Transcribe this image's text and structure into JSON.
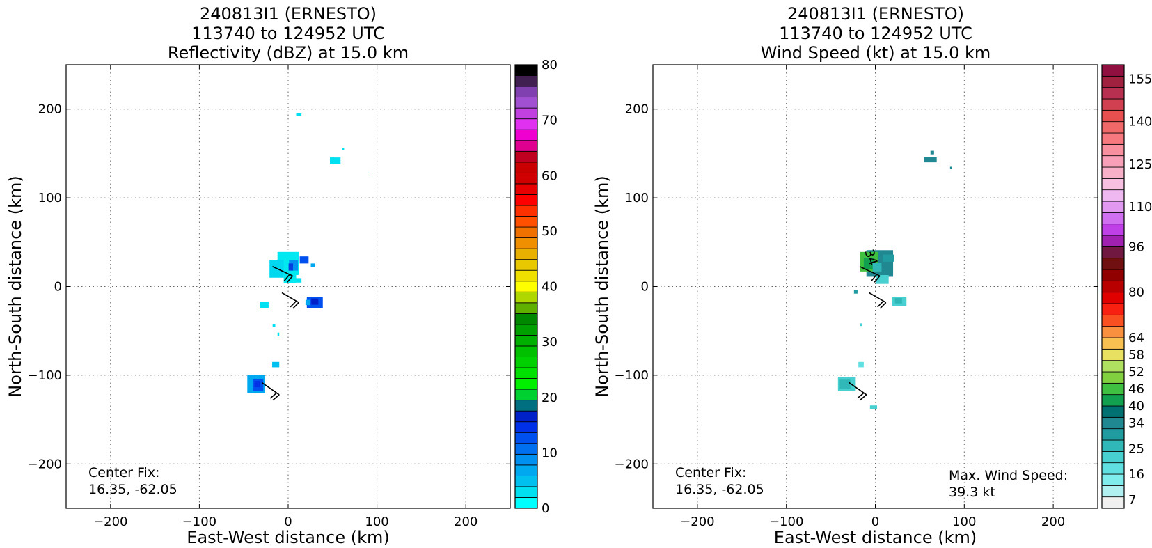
{
  "chart_data": [
    {
      "type": "heatmap",
      "title_lines": [
        "240813I1 (ERNESTO)",
        "113740 to 124952 UTC",
        "Reflectivity (dBZ) at 15.0 km"
      ],
      "xlabel": "East-West distance (km)",
      "ylabel": "North-South distance (km)",
      "xlim": [
        -250,
        250
      ],
      "ylim": [
        -250,
        250
      ],
      "xticks": [
        -200,
        -100,
        0,
        100,
        200
      ],
      "yticks": [
        -200,
        -100,
        0,
        100,
        200
      ],
      "x_tick_labels": [
        "−200",
        "−100",
        "0",
        "100",
        "200"
      ],
      "y_tick_labels": [
        "−200",
        "−100",
        "0",
        "100",
        "200"
      ],
      "grid": true,
      "colorbar": {
        "min": 0,
        "max": 80,
        "tick_values": [
          0,
          10,
          20,
          30,
          40,
          50,
          60,
          70,
          80
        ],
        "tick_labels": [
          "0",
          "10",
          "20",
          "30",
          "40",
          "50",
          "60",
          "70",
          "80"
        ],
        "colors": [
          "#00ffff",
          "#00e0f0",
          "#00c0f0",
          "#00a8f0",
          "#0090f0",
          "#0070f0",
          "#0050f0",
          "#0030e8",
          "#0020c8",
          "#007080",
          "#00d030",
          "#00f000",
          "#00e000",
          "#00d000",
          "#00c000",
          "#00b000",
          "#00a000",
          "#008800",
          "#60b000",
          "#b0d800",
          "#ffff00",
          "#f0e000",
          "#e8c800",
          "#e8b000",
          "#f09000",
          "#f07000",
          "#ff5000",
          "#ff3000",
          "#ff0000",
          "#e80000",
          "#d00000",
          "#c80000",
          "#c00020",
          "#e00090",
          "#f000d0",
          "#e030f0",
          "#c040e0",
          "#a050d0",
          "#8040b0",
          "#402050",
          "#000000"
        ]
      },
      "annotations": [
        {
          "lines": [
            "Center Fix:",
            "16.35, -62.05"
          ]
        }
      ],
      "cells": [
        {
          "x": 12,
          "y": 194,
          "w": 6,
          "h": 3,
          "color": "#00e0f0"
        },
        {
          "x": 53,
          "y": 142,
          "w": 12,
          "h": 7,
          "color": "#00e0f0"
        },
        {
          "x": 50,
          "y": 144,
          "w": 4,
          "h": 3,
          "color": "#00e0f0"
        },
        {
          "x": 62,
          "y": 155,
          "w": 2,
          "h": 3,
          "color": "#00e0f0"
        },
        {
          "x": 90,
          "y": 128,
          "w": 1,
          "h": 1,
          "color": "#00e0f0"
        },
        {
          "x": 0,
          "y": 26,
          "w": 24,
          "h": 26,
          "color": "#00e8f0"
        },
        {
          "x": -13,
          "y": 20,
          "w": 16,
          "h": 20,
          "color": "#00d8f0"
        },
        {
          "x": 2,
          "y": 10,
          "w": 14,
          "h": 12,
          "color": "#00e8f0"
        },
        {
          "x": 6,
          "y": 24,
          "w": 10,
          "h": 12,
          "color": "#0090f0"
        },
        {
          "x": 3,
          "y": 22,
          "w": 5,
          "h": 8,
          "color": "#0040e0"
        },
        {
          "x": 18,
          "y": 30,
          "w": 10,
          "h": 8,
          "color": "#0050f0"
        },
        {
          "x": 28,
          "y": 24,
          "w": 5,
          "h": 4,
          "color": "#00a8f0"
        },
        {
          "x": 12,
          "y": 7,
          "w": 6,
          "h": 5,
          "color": "#00e0f0"
        },
        {
          "x": 30,
          "y": -18,
          "w": 18,
          "h": 12,
          "color": "#0050f0"
        },
        {
          "x": 30,
          "y": -17,
          "w": 8,
          "h": 7,
          "color": "#0020c8"
        },
        {
          "x": 22,
          "y": -18,
          "w": 5,
          "h": 6,
          "color": "#00a8f0"
        },
        {
          "x": -27,
          "y": -21,
          "w": 10,
          "h": 7,
          "color": "#00e0f0"
        },
        {
          "x": -16,
          "y": -44,
          "w": 3,
          "h": 3,
          "color": "#00e0f0"
        },
        {
          "x": -11,
          "y": -54,
          "w": 2,
          "h": 4,
          "color": "#00e0f0"
        },
        {
          "x": -14,
          "y": -88,
          "w": 8,
          "h": 6,
          "color": "#00c0f0"
        },
        {
          "x": -36,
          "y": -110,
          "w": 20,
          "h": 20,
          "color": "#00a8f0"
        },
        {
          "x": -34,
          "y": -111,
          "w": 12,
          "h": 14,
          "color": "#0050f0"
        },
        {
          "x": -35,
          "y": -110,
          "w": 6,
          "h": 7,
          "color": "#0030e8"
        }
      ],
      "barbs": [
        {
          "x": 5,
          "y": 12,
          "dir": -155,
          "len": 25
        },
        {
          "x": 12,
          "y": -18,
          "dir": -150,
          "len": 22
        },
        {
          "x": -10,
          "y": -122,
          "dir": -145,
          "len": 24
        }
      ]
    },
    {
      "type": "heatmap",
      "title_lines": [
        "240813I1 (ERNESTO)",
        "113740 to 124952 UTC",
        "Wind Speed (kt) at 15.0 km"
      ],
      "xlabel": "East-West distance (km)",
      "ylabel": "North-South distance (km)",
      "xlim": [
        -250,
        250
      ],
      "ylim": [
        -250,
        250
      ],
      "xticks": [
        -200,
        -100,
        0,
        100,
        200
      ],
      "yticks": [
        -200,
        -100,
        0,
        100,
        200
      ],
      "x_tick_labels": [
        "−200",
        "−100",
        "0",
        "100",
        "200"
      ],
      "y_tick_labels": [
        "−200",
        "−100",
        "0",
        "100",
        "200"
      ],
      "grid": true,
      "colorbar": {
        "min": 4,
        "max": 160,
        "tick_values": [
          7,
          16,
          25,
          34,
          40,
          46,
          52,
          58,
          64,
          80,
          96,
          110,
          125,
          140,
          155
        ],
        "tick_labels": [
          "7",
          "16",
          "25",
          "34",
          "40",
          "46",
          "52",
          "58",
          "64",
          "80",
          "96",
          "110",
          "125",
          "140",
          "155"
        ],
        "colors": [
          "#f0f0f0",
          "#b0f0f0",
          "#80ecec",
          "#60e0e0",
          "#48d0d0",
          "#30b8b8",
          "#209ca0",
          "#208890",
          "#007070",
          "#10a050",
          "#40c040",
          "#80d040",
          "#b0e060",
          "#e8e060",
          "#f8c050",
          "#f89040",
          "#f85020",
          "#f82010",
          "#e00000",
          "#b80000",
          "#900000",
          "#701010",
          "#701840",
          "#a020b0",
          "#c040e8",
          "#d070f0",
          "#e098f0",
          "#f0b8f0",
          "#f8c0e0",
          "#f8b0c8",
          "#f8a0b8",
          "#f890a0",
          "#f87880",
          "#f06868",
          "#e85050",
          "#d04050",
          "#b83050",
          "#a02040",
          "#901040"
        ]
      },
      "annotations": [
        {
          "lines": [
            "Center Fix:",
            "16.35, -62.05"
          ]
        },
        {
          "lines": [
            "Max. Wind Speed:",
            "39.3 kt"
          ]
        }
      ],
      "contour_label": "34",
      "cells": [
        {
          "x": 62,
          "y": 143,
          "w": 14,
          "h": 6,
          "color": "#208890"
        },
        {
          "x": 64,
          "y": 151,
          "w": 4,
          "h": 4,
          "color": "#208890"
        },
        {
          "x": 85,
          "y": 134,
          "w": 2,
          "h": 2,
          "color": "#208890"
        },
        {
          "x": 5,
          "y": 26,
          "w": 30,
          "h": 30,
          "color": "#208890"
        },
        {
          "x": -7,
          "y": 28,
          "w": 20,
          "h": 22,
          "color": "#40c040"
        },
        {
          "x": -7,
          "y": 26,
          "w": 12,
          "h": 12,
          "color": "#10a050"
        },
        {
          "x": 2,
          "y": 22,
          "w": 10,
          "h": 10,
          "color": "#30b8b8"
        },
        {
          "x": 15,
          "y": 32,
          "w": 12,
          "h": 8,
          "color": "#209ca0"
        },
        {
          "x": 8,
          "y": 8,
          "w": 14,
          "h": 10,
          "color": "#48d0d0"
        },
        {
          "x": 27,
          "y": -17,
          "w": 16,
          "h": 10,
          "color": "#48d0d0"
        },
        {
          "x": 26,
          "y": -16,
          "w": 8,
          "h": 6,
          "color": "#30b8b8"
        },
        {
          "x": -22,
          "y": -6,
          "w": 4,
          "h": 4,
          "color": "#209ca0"
        },
        {
          "x": -16,
          "y": -43,
          "w": 2,
          "h": 3,
          "color": "#48d0d0"
        },
        {
          "x": -16,
          "y": -88,
          "w": 6,
          "h": 6,
          "color": "#60e0e0"
        },
        {
          "x": -32,
          "y": -110,
          "w": 20,
          "h": 16,
          "color": "#48d0d0"
        },
        {
          "x": -34,
          "y": -110,
          "w": 12,
          "h": 10,
          "color": "#30b8b8"
        },
        {
          "x": -2,
          "y": -136,
          "w": 8,
          "h": 4,
          "color": "#48d0d0"
        }
      ],
      "barbs": [
        {
          "x": 5,
          "y": 12,
          "dir": -155,
          "len": 25
        },
        {
          "x": 12,
          "y": -18,
          "dir": -150,
          "len": 22
        },
        {
          "x": -10,
          "y": -122,
          "dir": -145,
          "len": 24
        }
      ]
    }
  ]
}
